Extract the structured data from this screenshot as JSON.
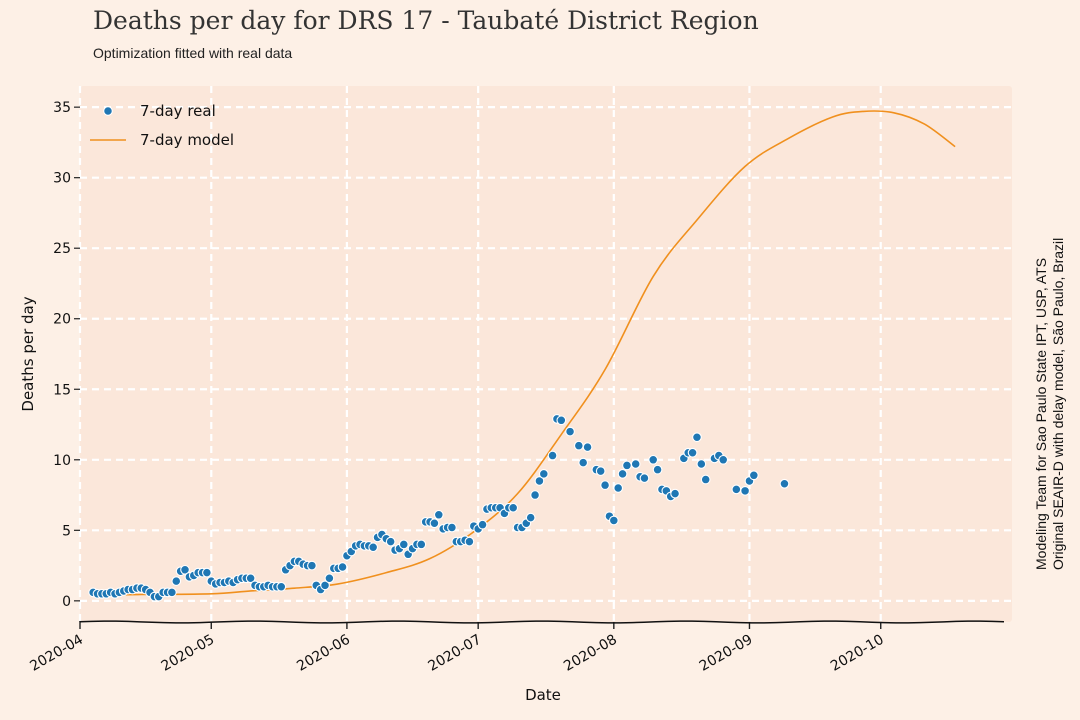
{
  "chart_data": {
    "type": "scatter+line",
    "title": "Deaths per day for DRS 17 - Taubaté District Region",
    "subtitle": "Optimization fitted with real data",
    "xlabel": "Date",
    "ylabel": "Deaths per day",
    "side_note": [
      "Modeling Team for Sao Paulo State IPT, USP, ATS",
      "Original SEAIR-D with delay model, São Paulo, Brazil"
    ],
    "x_ticks": [
      "2020-04",
      "2020-05",
      "2020-06",
      "2020-07",
      "2020-08",
      "2020-09",
      "2020-10"
    ],
    "y_ticks": [
      0,
      5,
      10,
      15,
      20,
      25,
      30,
      35
    ],
    "xlim": [
      "2020-04-01",
      "2020-10-31"
    ],
    "ylim": [
      -1.5,
      36.5
    ],
    "grid": true,
    "legend_position": "top-left",
    "colors": {
      "real": "#1f77b4",
      "model": "#f0901e",
      "background": "#fbe7da",
      "grid": "#ffffff"
    },
    "series": [
      {
        "name": "7-day real",
        "kind": "scatter",
        "points": [
          [
            "2020-04-04",
            0.6
          ],
          [
            "2020-04-05",
            0.5
          ],
          [
            "2020-04-06",
            0.5
          ],
          [
            "2020-04-07",
            0.5
          ],
          [
            "2020-04-08",
            0.6
          ],
          [
            "2020-04-09",
            0.5
          ],
          [
            "2020-04-10",
            0.6
          ],
          [
            "2020-04-11",
            0.7
          ],
          [
            "2020-04-12",
            0.8
          ],
          [
            "2020-04-13",
            0.8
          ],
          [
            "2020-04-14",
            0.9
          ],
          [
            "2020-04-15",
            0.9
          ],
          [
            "2020-04-16",
            0.8
          ],
          [
            "2020-04-17",
            0.6
          ],
          [
            "2020-04-18",
            0.3
          ],
          [
            "2020-04-19",
            0.3
          ],
          [
            "2020-04-20",
            0.6
          ],
          [
            "2020-04-21",
            0.6
          ],
          [
            "2020-04-22",
            0.6
          ],
          [
            "2020-04-23",
            1.4
          ],
          [
            "2020-04-24",
            2.1
          ],
          [
            "2020-04-25",
            2.2
          ],
          [
            "2020-04-26",
            1.7
          ],
          [
            "2020-04-27",
            1.8
          ],
          [
            "2020-04-28",
            2.0
          ],
          [
            "2020-04-29",
            2.0
          ],
          [
            "2020-04-30",
            2.0
          ],
          [
            "2020-05-01",
            1.4
          ],
          [
            "2020-05-02",
            1.2
          ],
          [
            "2020-05-03",
            1.3
          ],
          [
            "2020-05-04",
            1.3
          ],
          [
            "2020-05-05",
            1.4
          ],
          [
            "2020-05-06",
            1.3
          ],
          [
            "2020-05-07",
            1.5
          ],
          [
            "2020-05-08",
            1.6
          ],
          [
            "2020-05-09",
            1.6
          ],
          [
            "2020-05-10",
            1.6
          ],
          [
            "2020-05-11",
            1.1
          ],
          [
            "2020-05-12",
            1.0
          ],
          [
            "2020-05-13",
            1.0
          ],
          [
            "2020-05-14",
            1.1
          ],
          [
            "2020-05-15",
            1.0
          ],
          [
            "2020-05-16",
            1.0
          ],
          [
            "2020-05-17",
            1.0
          ],
          [
            "2020-05-18",
            2.2
          ],
          [
            "2020-05-19",
            2.5
          ],
          [
            "2020-05-20",
            2.8
          ],
          [
            "2020-05-21",
            2.8
          ],
          [
            "2020-05-22",
            2.6
          ],
          [
            "2020-05-23",
            2.5
          ],
          [
            "2020-05-24",
            2.5
          ],
          [
            "2020-05-25",
            1.1
          ],
          [
            "2020-05-26",
            0.8
          ],
          [
            "2020-05-27",
            1.1
          ],
          [
            "2020-05-28",
            1.6
          ],
          [
            "2020-05-29",
            2.3
          ],
          [
            "2020-05-30",
            2.3
          ],
          [
            "2020-05-31",
            2.4
          ],
          [
            "2020-06-01",
            3.2
          ],
          [
            "2020-06-02",
            3.5
          ],
          [
            "2020-06-03",
            3.9
          ],
          [
            "2020-06-04",
            4.0
          ],
          [
            "2020-06-05",
            3.9
          ],
          [
            "2020-06-06",
            3.9
          ],
          [
            "2020-06-07",
            3.8
          ],
          [
            "2020-06-08",
            4.5
          ],
          [
            "2020-06-09",
            4.7
          ],
          [
            "2020-06-10",
            4.4
          ],
          [
            "2020-06-11",
            4.2
          ],
          [
            "2020-06-12",
            3.6
          ],
          [
            "2020-06-13",
            3.7
          ],
          [
            "2020-06-14",
            4.0
          ],
          [
            "2020-06-15",
            3.3
          ],
          [
            "2020-06-16",
            3.7
          ],
          [
            "2020-06-17",
            4.0
          ],
          [
            "2020-06-18",
            4.0
          ],
          [
            "2020-06-19",
            5.6
          ],
          [
            "2020-06-20",
            5.6
          ],
          [
            "2020-06-21",
            5.5
          ],
          [
            "2020-06-22",
            6.1
          ],
          [
            "2020-06-23",
            5.1
          ],
          [
            "2020-06-24",
            5.2
          ],
          [
            "2020-06-25",
            5.2
          ],
          [
            "2020-06-26",
            4.2
          ],
          [
            "2020-06-27",
            4.2
          ],
          [
            "2020-06-28",
            4.3
          ],
          [
            "2020-06-29",
            4.2
          ],
          [
            "2020-06-30",
            5.3
          ],
          [
            "2020-07-01",
            5.1
          ],
          [
            "2020-07-02",
            5.4
          ],
          [
            "2020-07-03",
            6.5
          ],
          [
            "2020-07-04",
            6.6
          ],
          [
            "2020-07-05",
            6.6
          ],
          [
            "2020-07-06",
            6.6
          ],
          [
            "2020-07-07",
            6.2
          ],
          [
            "2020-07-08",
            6.6
          ],
          [
            "2020-07-09",
            6.6
          ],
          [
            "2020-07-10",
            5.2
          ],
          [
            "2020-07-11",
            5.2
          ],
          [
            "2020-07-12",
            5.5
          ],
          [
            "2020-07-13",
            5.9
          ],
          [
            "2020-07-14",
            7.5
          ],
          [
            "2020-07-15",
            8.5
          ],
          [
            "2020-07-16",
            9.0
          ],
          [
            "2020-07-18",
            10.3
          ],
          [
            "2020-07-19",
            12.9
          ],
          [
            "2020-07-20",
            12.8
          ],
          [
            "2020-07-22",
            12.0
          ],
          [
            "2020-07-24",
            11.0
          ],
          [
            "2020-07-25",
            9.8
          ],
          [
            "2020-07-26",
            10.9
          ],
          [
            "2020-07-28",
            9.3
          ],
          [
            "2020-07-29",
            9.2
          ],
          [
            "2020-07-30",
            8.2
          ],
          [
            "2020-07-31",
            6.0
          ],
          [
            "2020-08-01",
            5.7
          ],
          [
            "2020-08-02",
            8.0
          ],
          [
            "2020-08-03",
            9.0
          ],
          [
            "2020-08-04",
            9.6
          ],
          [
            "2020-08-06",
            9.7
          ],
          [
            "2020-08-07",
            8.8
          ],
          [
            "2020-08-08",
            8.7
          ],
          [
            "2020-08-10",
            10.0
          ],
          [
            "2020-08-11",
            9.3
          ],
          [
            "2020-08-12",
            7.9
          ],
          [
            "2020-08-13",
            7.8
          ],
          [
            "2020-08-14",
            7.4
          ],
          [
            "2020-08-15",
            7.6
          ],
          [
            "2020-08-17",
            10.1
          ],
          [
            "2020-08-18",
            10.5
          ],
          [
            "2020-08-19",
            10.5
          ],
          [
            "2020-08-20",
            11.6
          ],
          [
            "2020-08-21",
            9.7
          ],
          [
            "2020-08-22",
            8.6
          ],
          [
            "2020-08-24",
            10.1
          ],
          [
            "2020-08-25",
            10.3
          ],
          [
            "2020-08-26",
            10.0
          ],
          [
            "2020-08-29",
            7.9
          ],
          [
            "2020-08-31",
            7.8
          ],
          [
            "2020-09-01",
            8.5
          ],
          [
            "2020-09-02",
            8.9
          ],
          [
            "2020-09-09",
            8.3
          ]
        ]
      },
      {
        "name": "7-day model",
        "kind": "line",
        "points": [
          [
            "2020-04-04",
            0.4
          ],
          [
            "2020-04-15",
            0.45
          ],
          [
            "2020-05-01",
            0.5
          ],
          [
            "2020-05-10",
            0.7
          ],
          [
            "2020-05-20",
            0.9
          ],
          [
            "2020-05-30",
            1.2
          ],
          [
            "2020-06-10",
            2.0
          ],
          [
            "2020-06-20",
            3.0
          ],
          [
            "2020-06-30",
            4.9
          ],
          [
            "2020-07-10",
            7.6
          ],
          [
            "2020-07-20",
            11.8
          ],
          [
            "2020-07-30",
            16.4
          ],
          [
            "2020-08-10",
            23.0
          ],
          [
            "2020-08-20",
            27.0
          ],
          [
            "2020-08-31",
            30.8
          ],
          [
            "2020-09-10",
            32.8
          ],
          [
            "2020-09-20",
            34.3
          ],
          [
            "2020-09-27",
            34.7
          ],
          [
            "2020-10-04",
            34.6
          ],
          [
            "2020-10-11",
            33.8
          ],
          [
            "2020-10-18",
            32.2
          ]
        ]
      }
    ]
  }
}
